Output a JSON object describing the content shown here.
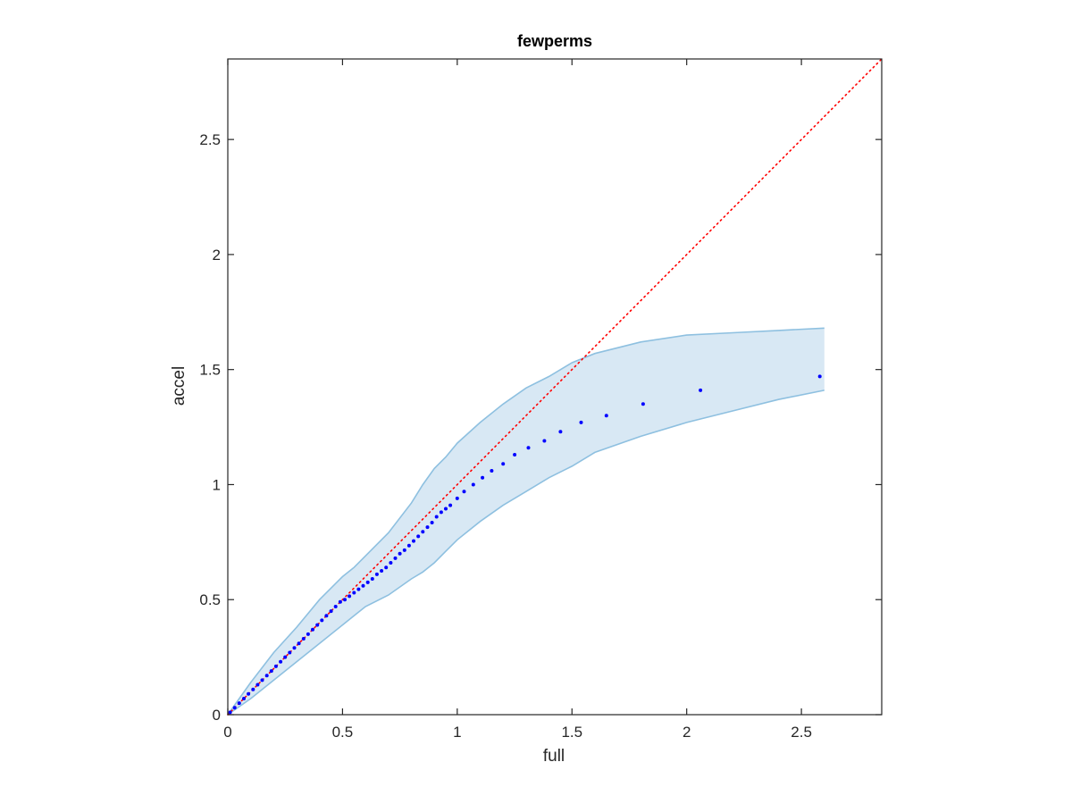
{
  "chart_data": {
    "type": "scatter",
    "title": "fewperms",
    "xlabel": "full",
    "ylabel": "accel",
    "xlim": [
      0,
      2.85
    ],
    "ylim": [
      0,
      2.85
    ],
    "xticks": [
      0,
      0.5,
      1,
      1.5,
      2,
      2.5
    ],
    "yticks": [
      0,
      0.5,
      1,
      1.5,
      2,
      2.5
    ],
    "xtick_labels": [
      "0",
      "0.5",
      "1",
      "1.5",
      "2",
      "2.5"
    ],
    "ytick_labels": [
      "0",
      "0.5",
      "1",
      "1.5",
      "2",
      "2.5"
    ],
    "grid": false,
    "reference_line": {
      "style": "dotted",
      "color": "#ff0000",
      "from": [
        0,
        0
      ],
      "to": [
        2.85,
        2.85
      ]
    },
    "band": {
      "fill": "#d8e8f4",
      "stroke": "#8ec0e0",
      "x": [
        0,
        0.1,
        0.2,
        0.3,
        0.4,
        0.5,
        0.55,
        0.6,
        0.7,
        0.8,
        0.85,
        0.9,
        0.95,
        1.0,
        1.1,
        1.2,
        1.3,
        1.4,
        1.5,
        1.6,
        1.8,
        2.0,
        2.2,
        2.4,
        2.6
      ],
      "upper": [
        0,
        0.14,
        0.27,
        0.38,
        0.5,
        0.6,
        0.64,
        0.69,
        0.79,
        0.92,
        1.0,
        1.07,
        1.12,
        1.18,
        1.27,
        1.35,
        1.42,
        1.47,
        1.53,
        1.57,
        1.62,
        1.65,
        1.66,
        1.67,
        1.68
      ],
      "lower": [
        0,
        0.07,
        0.15,
        0.23,
        0.31,
        0.39,
        0.43,
        0.47,
        0.52,
        0.59,
        0.62,
        0.66,
        0.71,
        0.76,
        0.84,
        0.91,
        0.97,
        1.03,
        1.08,
        1.14,
        1.21,
        1.27,
        1.32,
        1.37,
        1.41
      ]
    },
    "series": [
      {
        "color": "#0000ff",
        "points": [
          [
            0.01,
            0.01
          ],
          [
            0.03,
            0.03
          ],
          [
            0.05,
            0.05
          ],
          [
            0.07,
            0.07
          ],
          [
            0.09,
            0.09
          ],
          [
            0.11,
            0.11
          ],
          [
            0.13,
            0.13
          ],
          [
            0.15,
            0.15
          ],
          [
            0.17,
            0.17
          ],
          [
            0.19,
            0.19
          ],
          [
            0.21,
            0.21
          ],
          [
            0.23,
            0.23
          ],
          [
            0.25,
            0.25
          ],
          [
            0.27,
            0.27
          ],
          [
            0.29,
            0.29
          ],
          [
            0.31,
            0.31
          ],
          [
            0.33,
            0.33
          ],
          [
            0.35,
            0.35
          ],
          [
            0.37,
            0.37
          ],
          [
            0.39,
            0.39
          ],
          [
            0.41,
            0.41
          ],
          [
            0.43,
            0.43
          ],
          [
            0.45,
            0.45
          ],
          [
            0.47,
            0.47
          ],
          [
            0.49,
            0.49
          ],
          [
            0.51,
            0.5
          ],
          [
            0.53,
            0.515
          ],
          [
            0.55,
            0.53
          ],
          [
            0.57,
            0.545
          ],
          [
            0.59,
            0.56
          ],
          [
            0.61,
            0.575
          ],
          [
            0.63,
            0.59
          ],
          [
            0.65,
            0.61
          ],
          [
            0.67,
            0.625
          ],
          [
            0.69,
            0.64
          ],
          [
            0.71,
            0.66
          ],
          [
            0.73,
            0.68
          ],
          [
            0.75,
            0.7
          ],
          [
            0.77,
            0.715
          ],
          [
            0.79,
            0.735
          ],
          [
            0.81,
            0.755
          ],
          [
            0.83,
            0.775
          ],
          [
            0.85,
            0.795
          ],
          [
            0.87,
            0.815
          ],
          [
            0.89,
            0.835
          ],
          [
            0.91,
            0.86
          ],
          [
            0.93,
            0.88
          ],
          [
            0.95,
            0.895
          ],
          [
            0.97,
            0.91
          ],
          [
            1.0,
            0.94
          ],
          [
            1.03,
            0.97
          ],
          [
            1.07,
            1.0
          ],
          [
            1.11,
            1.03
          ],
          [
            1.15,
            1.06
          ],
          [
            1.2,
            1.09
          ],
          [
            1.25,
            1.13
          ],
          [
            1.31,
            1.16
          ],
          [
            1.38,
            1.19
          ],
          [
            1.45,
            1.23
          ],
          [
            1.54,
            1.27
          ],
          [
            1.65,
            1.3
          ],
          [
            1.81,
            1.35
          ],
          [
            2.06,
            1.41
          ],
          [
            2.58,
            1.47
          ]
        ]
      }
    ]
  }
}
